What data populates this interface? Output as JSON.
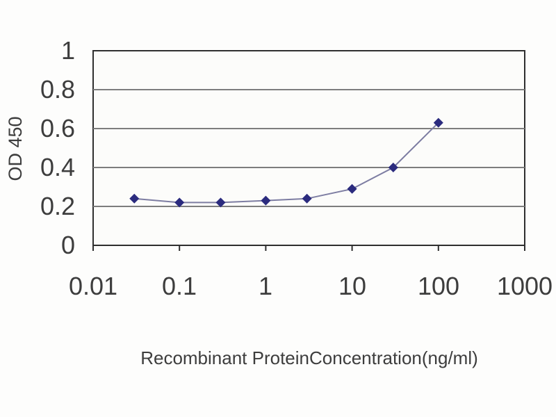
{
  "chart_data": {
    "type": "line",
    "title": "",
    "xlabel": "Recombinant ProteinConcentration(ng/ml)",
    "ylabel": "OD 450",
    "x_scale": "log",
    "xlim": [
      0.01,
      1000
    ],
    "ylim": [
      0,
      1
    ],
    "x_tick_labels": [
      "0.01",
      "0.1",
      "1",
      "10",
      "100",
      "1000"
    ],
    "x_tick_values": [
      0.01,
      0.1,
      1,
      10,
      100,
      1000
    ],
    "y_tick_labels": [
      "0",
      "0.2",
      "0.4",
      "0.6",
      "0.8",
      "1"
    ],
    "y_tick_values": [
      0,
      0.2,
      0.4,
      0.6,
      0.8,
      1
    ],
    "grid_y_values": [
      0.2,
      0.4,
      0.6,
      0.8
    ],
    "legend": "none",
    "series": [
      {
        "name": "OD 450",
        "marker": "diamond",
        "x": [
          0.03,
          0.1,
          0.3,
          1,
          3,
          10,
          30,
          100
        ],
        "y": [
          0.24,
          0.22,
          0.22,
          0.23,
          0.24,
          0.29,
          0.4,
          0.63
        ]
      }
    ],
    "colors": {
      "marker": "#2b2b7e",
      "line": "#7d7da2",
      "grid": "#7d7d7d",
      "axis": "#2e2e2e",
      "plot_fill": "#fcfcfa",
      "text": "#3d3d3d"
    }
  }
}
